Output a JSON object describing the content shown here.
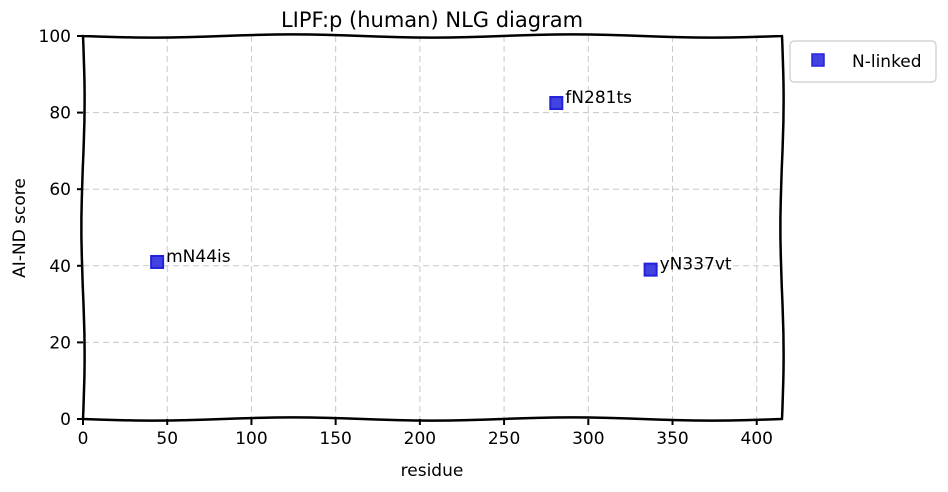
{
  "chart_data": {
    "type": "scatter",
    "title": "LIPF:p (human) NLG diagram",
    "xlabel": "residue",
    "ylabel": "AI-ND score",
    "xlim": [
      0,
      415
    ],
    "ylim": [
      0,
      100
    ],
    "xticks": [
      0,
      50,
      100,
      150,
      200,
      250,
      300,
      350,
      400
    ],
    "yticks": [
      0,
      20,
      40,
      60,
      80,
      100
    ],
    "grid": true,
    "legend_position": "outside-top-right",
    "series": [
      {
        "name": "N-linked",
        "color": "#2222dd",
        "marker": "square",
        "points": [
          {
            "x": 44,
            "y": 41,
            "label": "mN44is"
          },
          {
            "x": 281,
            "y": 82.5,
            "label": "fN281ts"
          },
          {
            "x": 337,
            "y": 39,
            "label": "yN337vt"
          }
        ]
      }
    ]
  }
}
